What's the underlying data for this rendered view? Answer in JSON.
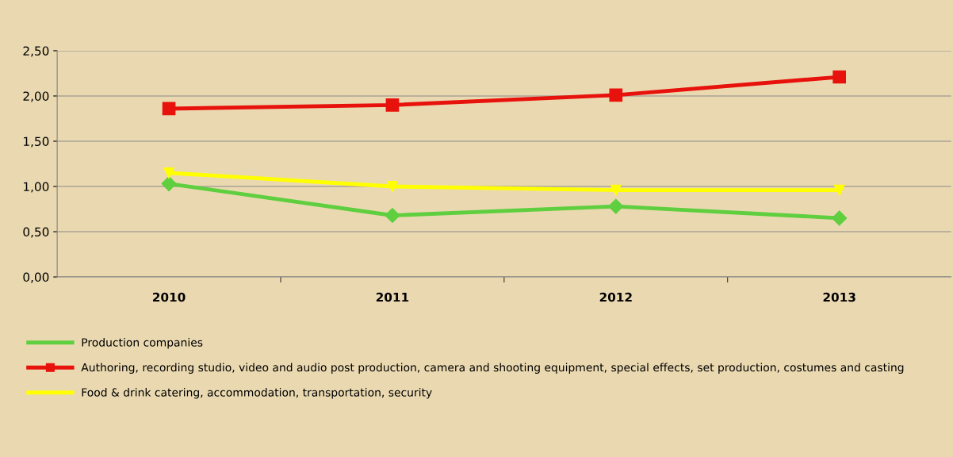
{
  "chart_data": {
    "type": "line",
    "categories": [
      "2010",
      "2011",
      "2012",
      "2013"
    ],
    "series": [
      {
        "name": "Production companies",
        "color": "#5fcf3f",
        "values": [
          1.03,
          0.68,
          0.78,
          0.65
        ],
        "marker": "diamond"
      },
      {
        "name": "Authoring, recording studio, video and audio post production, camera and shooting equipment, special effects, set production, costumes and casting",
        "color": "#e8120c",
        "values": [
          1.86,
          1.9,
          2.01,
          2.21
        ],
        "marker": "square"
      },
      {
        "name": "Food & drink catering, accommodation, transportation, security",
        "color": "#ffff00",
        "values": [
          1.15,
          1.0,
          0.96,
          0.96
        ],
        "marker": "triangle"
      }
    ],
    "ylim": [
      0,
      2.5
    ],
    "yticks": [
      {
        "value": 0,
        "label": "0,00"
      },
      {
        "value": 0.5,
        "label": "0,50"
      },
      {
        "value": 1,
        "label": "1,00"
      },
      {
        "value": 1.5,
        "label": "1,50"
      },
      {
        "value": 2,
        "label": "2,00"
      },
      {
        "value": 2.5,
        "label": "2,50"
      }
    ],
    "grid": "y",
    "legend": "bottom"
  }
}
